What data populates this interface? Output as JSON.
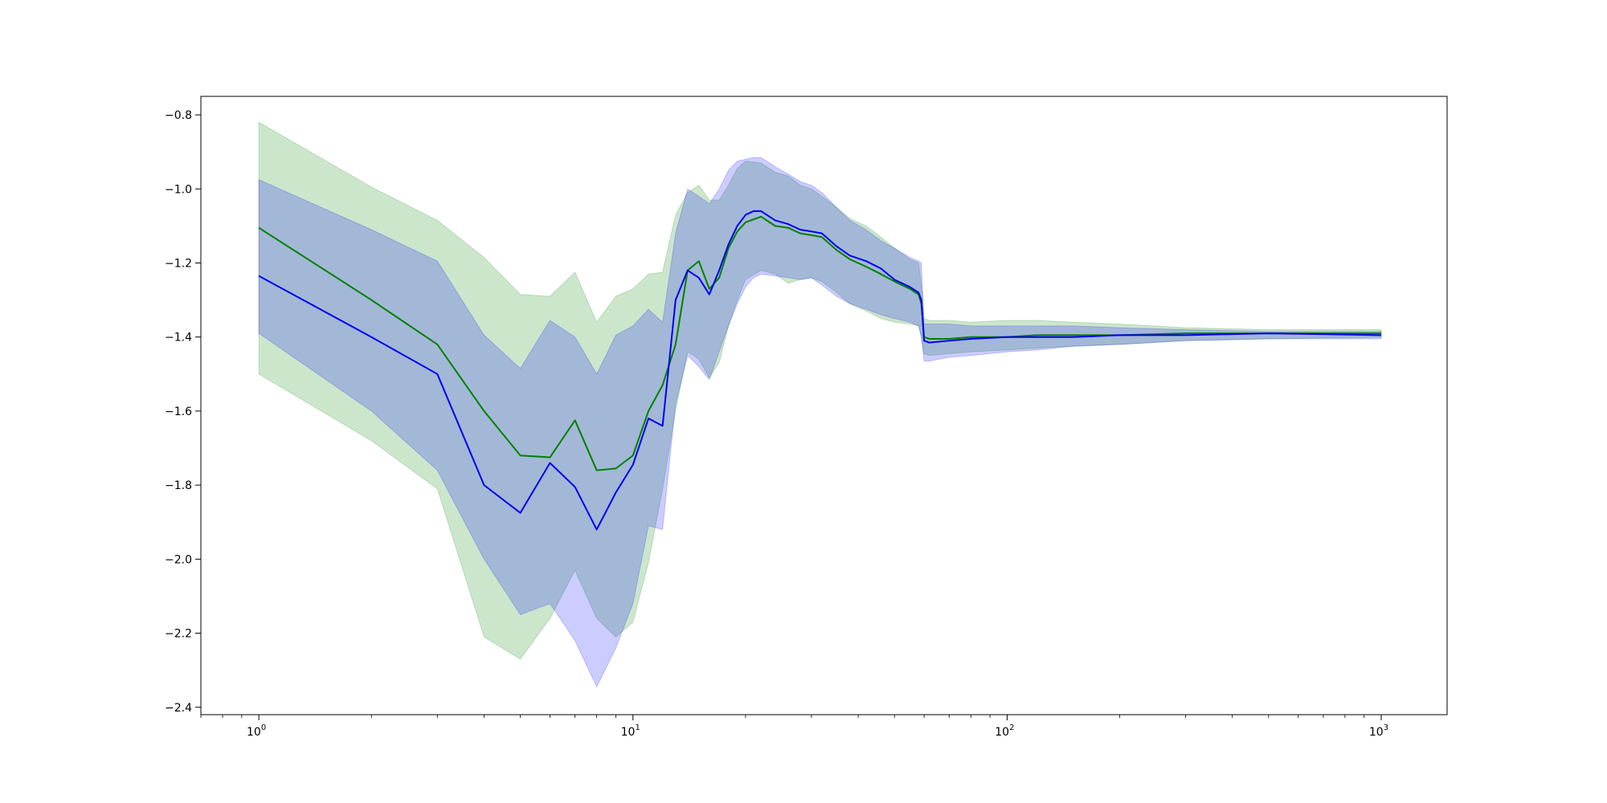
{
  "chart_data": {
    "type": "line",
    "title": "",
    "xlabel": "",
    "ylabel": "",
    "x_scale": "log",
    "xlim": [
      0.7,
      1500
    ],
    "ylim": [
      -2.42,
      -0.75
    ],
    "grid": false,
    "legend": null,
    "x_ticks": [
      {
        "value": 1,
        "base": "10",
        "exp": "0"
      },
      {
        "value": 10,
        "base": "10",
        "exp": "1"
      },
      {
        "value": 100,
        "base": "10",
        "exp": "2"
      },
      {
        "value": 1000,
        "base": "10",
        "exp": "3"
      }
    ],
    "y_ticks": [
      {
        "value": -0.8,
        "label": "−0.8"
      },
      {
        "value": -1.0,
        "label": "−1.0"
      },
      {
        "value": -1.2,
        "label": "−1.2"
      },
      {
        "value": -1.4,
        "label": "−1.4"
      },
      {
        "value": -1.6,
        "label": "−1.6"
      },
      {
        "value": -1.8,
        "label": "−1.8"
      },
      {
        "value": -2.0,
        "label": "−2.0"
      },
      {
        "value": -2.2,
        "label": "−2.2"
      },
      {
        "value": -2.4,
        "label": "−2.4"
      }
    ],
    "series": [
      {
        "color": "#008000",
        "band_color": "#008000",
        "band_opacity": 0.2,
        "x": [
          1,
          2,
          3,
          4,
          5,
          6,
          7,
          8,
          9,
          10,
          11,
          12,
          13,
          14,
          15,
          16,
          17,
          18,
          19,
          20,
          22,
          24,
          26,
          28,
          30,
          32,
          35,
          38,
          42,
          46,
          50,
          55,
          58,
          59,
          60,
          62,
          70,
          80,
          100,
          120,
          150,
          200,
          300,
          500,
          1000
        ],
        "y": [
          -1.105,
          -1.3,
          -1.42,
          -1.6,
          -1.72,
          -1.725,
          -1.625,
          -1.76,
          -1.755,
          -1.72,
          -1.6,
          -1.53,
          -1.42,
          -1.22,
          -1.195,
          -1.27,
          -1.24,
          -1.16,
          -1.115,
          -1.09,
          -1.075,
          -1.1,
          -1.105,
          -1.12,
          -1.125,
          -1.13,
          -1.165,
          -1.19,
          -1.21,
          -1.23,
          -1.25,
          -1.27,
          -1.285,
          -1.31,
          -1.4,
          -1.405,
          -1.405,
          -1.4,
          -1.4,
          -1.395,
          -1.395,
          -1.395,
          -1.39,
          -1.39,
          -1.39
        ],
        "lower": [
          -1.5,
          -1.68,
          -1.81,
          -2.21,
          -2.27,
          -2.16,
          -2.03,
          -2.16,
          -2.21,
          -2.17,
          -2.01,
          -1.81,
          -1.6,
          -1.44,
          -1.46,
          -1.51,
          -1.47,
          -1.37,
          -1.3,
          -1.245,
          -1.22,
          -1.23,
          -1.255,
          -1.245,
          -1.24,
          -1.25,
          -1.28,
          -1.31,
          -1.33,
          -1.35,
          -1.36,
          -1.365,
          -1.37,
          -1.4,
          -1.445,
          -1.45,
          -1.445,
          -1.44,
          -1.435,
          -1.43,
          -1.425,
          -1.42,
          -1.41,
          -1.405,
          -1.4
        ],
        "upper": [
          -0.82,
          -0.995,
          -1.085,
          -1.185,
          -1.285,
          -1.29,
          -1.225,
          -1.36,
          -1.29,
          -1.27,
          -1.23,
          -1.225,
          -1.07,
          -1.01,
          -0.99,
          -1.03,
          -1.03,
          -0.99,
          -0.945,
          -0.925,
          -0.93,
          -0.955,
          -0.965,
          -0.99,
          -1.0,
          -1.02,
          -1.05,
          -1.08,
          -1.1,
          -1.13,
          -1.16,
          -1.19,
          -1.2,
          -1.26,
          -1.35,
          -1.355,
          -1.355,
          -1.36,
          -1.355,
          -1.355,
          -1.36,
          -1.365,
          -1.375,
          -1.38,
          -1.38
        ]
      },
      {
        "color": "#0000ee",
        "band_color": "#0000ff",
        "band_opacity": 0.2,
        "x": [
          1,
          2,
          3,
          4,
          5,
          6,
          7,
          8,
          9,
          10,
          11,
          12,
          13,
          14,
          15,
          16,
          17,
          18,
          19,
          20,
          21,
          22,
          24,
          26,
          28,
          30,
          32,
          35,
          38,
          42,
          46,
          50,
          55,
          58,
          59,
          60,
          62,
          70,
          80,
          100,
          120,
          150,
          200,
          300,
          500,
          1000
        ],
        "y": [
          -1.235,
          -1.4,
          -1.5,
          -1.8,
          -1.875,
          -1.74,
          -1.805,
          -1.92,
          -1.82,
          -1.745,
          -1.62,
          -1.64,
          -1.3,
          -1.22,
          -1.24,
          -1.285,
          -1.22,
          -1.15,
          -1.1,
          -1.07,
          -1.06,
          -1.06,
          -1.085,
          -1.095,
          -1.11,
          -1.115,
          -1.12,
          -1.155,
          -1.18,
          -1.195,
          -1.215,
          -1.245,
          -1.265,
          -1.28,
          -1.3,
          -1.41,
          -1.415,
          -1.41,
          -1.405,
          -1.4,
          -1.4,
          -1.4,
          -1.395,
          -1.395,
          -1.39,
          -1.395
        ],
        "lower": [
          -1.39,
          -1.6,
          -1.76,
          -2.0,
          -2.15,
          -2.12,
          -2.22,
          -2.345,
          -2.24,
          -2.12,
          -1.91,
          -1.92,
          -1.58,
          -1.45,
          -1.48,
          -1.515,
          -1.44,
          -1.37,
          -1.31,
          -1.265,
          -1.24,
          -1.23,
          -1.235,
          -1.24,
          -1.245,
          -1.24,
          -1.26,
          -1.29,
          -1.31,
          -1.325,
          -1.34,
          -1.35,
          -1.36,
          -1.37,
          -1.4,
          -1.465,
          -1.465,
          -1.455,
          -1.45,
          -1.44,
          -1.435,
          -1.425,
          -1.42,
          -1.41,
          -1.405,
          -1.405
        ],
        "upper": [
          -0.975,
          -1.11,
          -1.195,
          -1.395,
          -1.485,
          -1.355,
          -1.4,
          -1.5,
          -1.395,
          -1.37,
          -1.325,
          -1.36,
          -1.12,
          -1.0,
          -1.02,
          -1.04,
          -1.0,
          -0.95,
          -0.925,
          -0.92,
          -0.915,
          -0.915,
          -0.94,
          -0.96,
          -0.98,
          -0.99,
          -1.01,
          -1.05,
          -1.085,
          -1.11,
          -1.14,
          -1.16,
          -1.185,
          -1.195,
          -1.2,
          -1.365,
          -1.365,
          -1.365,
          -1.37,
          -1.37,
          -1.37,
          -1.37,
          -1.375,
          -1.38,
          -1.385,
          -1.385
        ]
      }
    ]
  }
}
